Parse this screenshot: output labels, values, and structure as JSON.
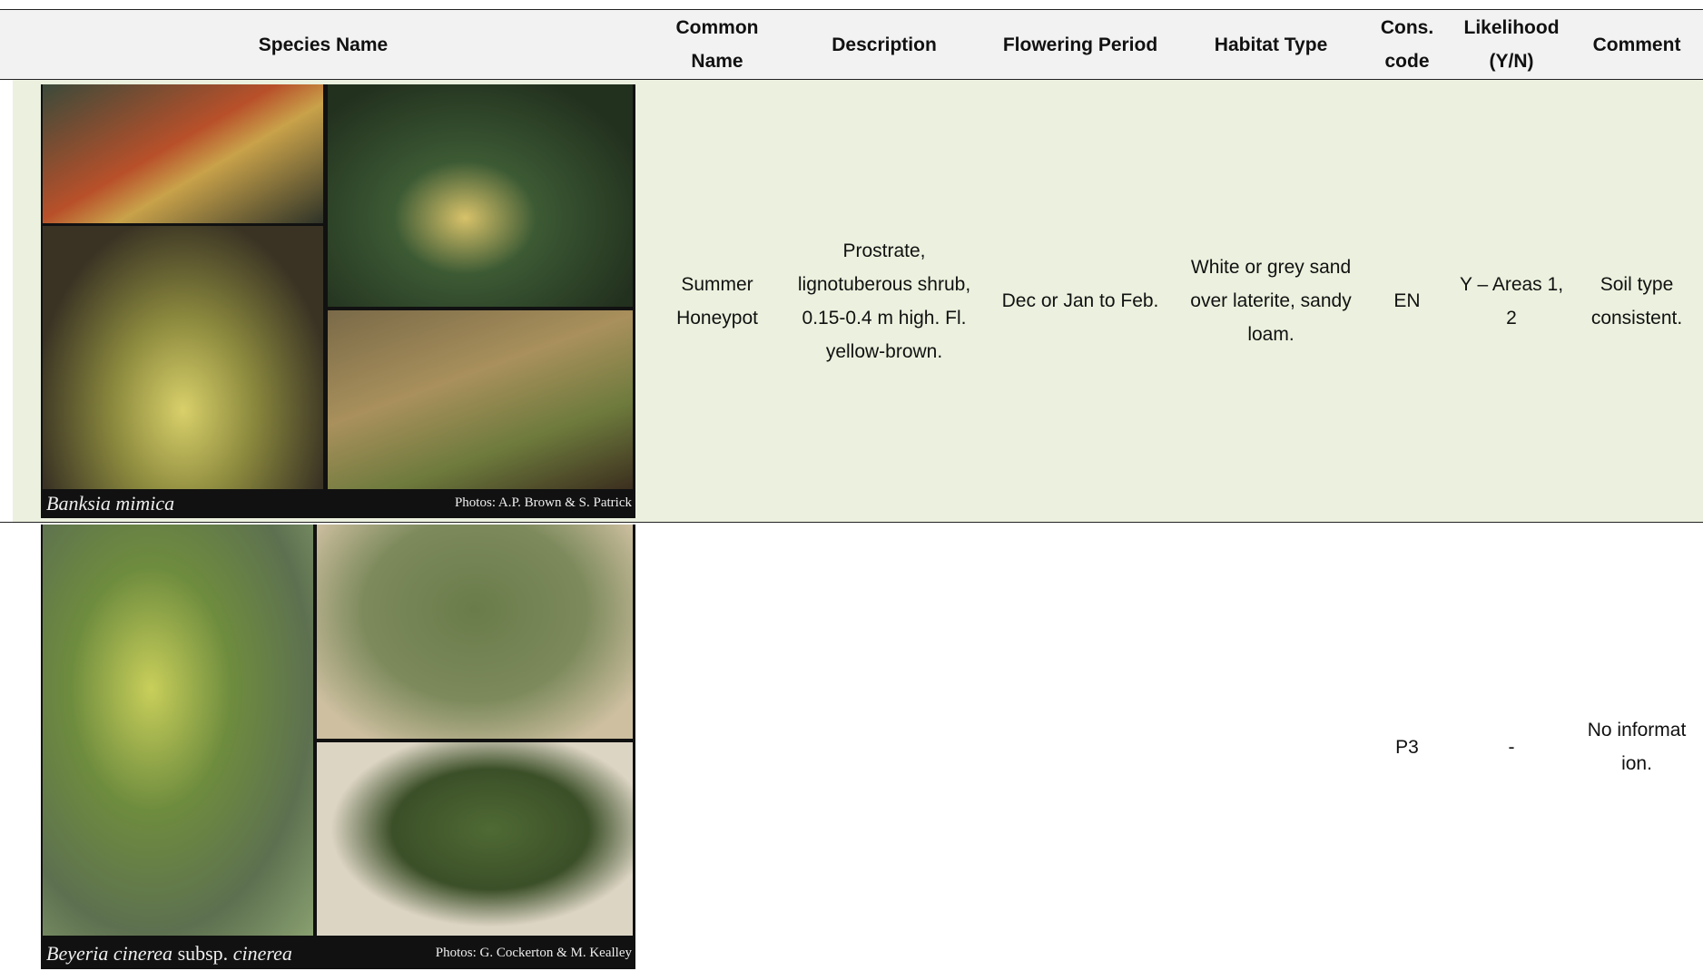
{
  "table": {
    "header": [
      "Species Name",
      "Common Name",
      "Description",
      "Flowering Period",
      "Habitat Type",
      "Cons. code",
      "Likelihood (Y/N)",
      "Comment"
    ],
    "rows": [
      {
        "photo": {
          "species": [
            "Banksia mimica"
          ],
          "credit": "Photos:  A.P. Brown & S. Patrick"
        },
        "cells": [
          "Summer Honeypot",
          "Prostrate, lignotuberous shrub, 0.15-0.4 m high. Fl. yellow-brown.",
          "Dec or Jan to Feb.",
          "White or grey sand over laterite, sandy loam.",
          "EN",
          "Y – Areas 1, 2",
          "Soil type consistent."
        ]
      },
      {
        "photo": {
          "species": [
            "Beyeria cinerea",
            "subsp.",
            "cinerea"
          ],
          "credit": "Photos: G. Cockerton & M. Kealley"
        },
        "cells": [
          "",
          "",
          "",
          "",
          "P3",
          "-",
          "No information."
        ]
      }
    ]
  }
}
